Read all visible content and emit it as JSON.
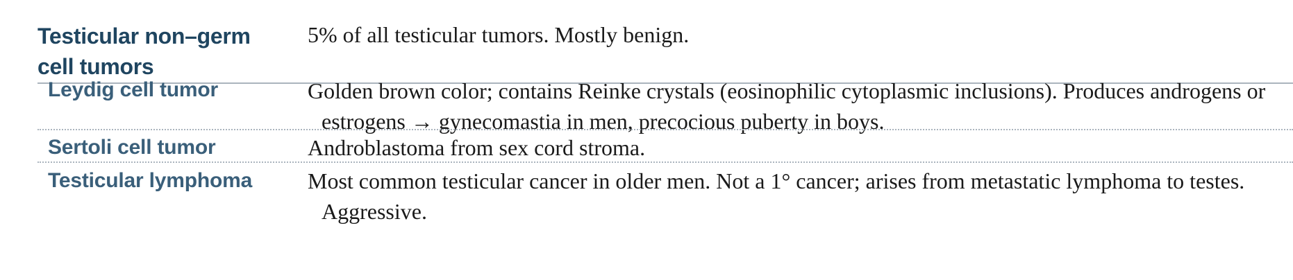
{
  "header": {
    "term": "Testicular non–germ cell tumors",
    "description": "5% of all testicular tumors. Mostly benign."
  },
  "rows": [
    {
      "term": "Leydig cell tumor",
      "description": "Golden brown color; contains Reinke crystals (eosinophilic cytoplasmic inclusions). Produces androgens or estrogens → gynecomastia in men, precocious puberty in boys."
    },
    {
      "term": "Sertoli cell tumor",
      "description": "Androblastoma from sex cord stroma."
    },
    {
      "term": "Testicular lymphoma",
      "description": "Most common testicular cancer in older men. Not a 1° cancer; arises from metastatic lymphoma to testes. Aggressive."
    }
  ]
}
